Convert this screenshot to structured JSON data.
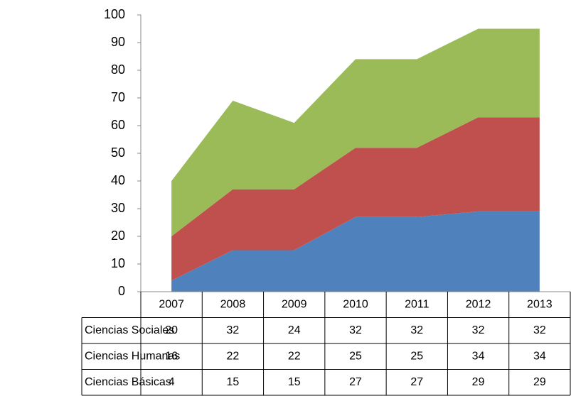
{
  "chart_data": {
    "type": "stacked_area",
    "categories": [
      "2007",
      "2008",
      "2009",
      "2010",
      "2011",
      "2012",
      "2013"
    ],
    "series": [
      {
        "name": "Ciencias Sociales",
        "color": "#9bbb59",
        "values": [
          20,
          32,
          24,
          32,
          32,
          32,
          32
        ]
      },
      {
        "name": "Ciencias Humanas",
        "color": "#c0504d",
        "values": [
          16,
          22,
          22,
          25,
          25,
          34,
          34
        ]
      },
      {
        "name": "Ciencias Básicas",
        "color": "#4f81bd",
        "values": [
          4,
          15,
          15,
          27,
          27,
          29,
          29
        ]
      }
    ],
    "ylim": [
      0,
      100
    ],
    "yticks": [
      0,
      10,
      20,
      30,
      40,
      50,
      60,
      70,
      80,
      90,
      100
    ],
    "grid": false
  }
}
